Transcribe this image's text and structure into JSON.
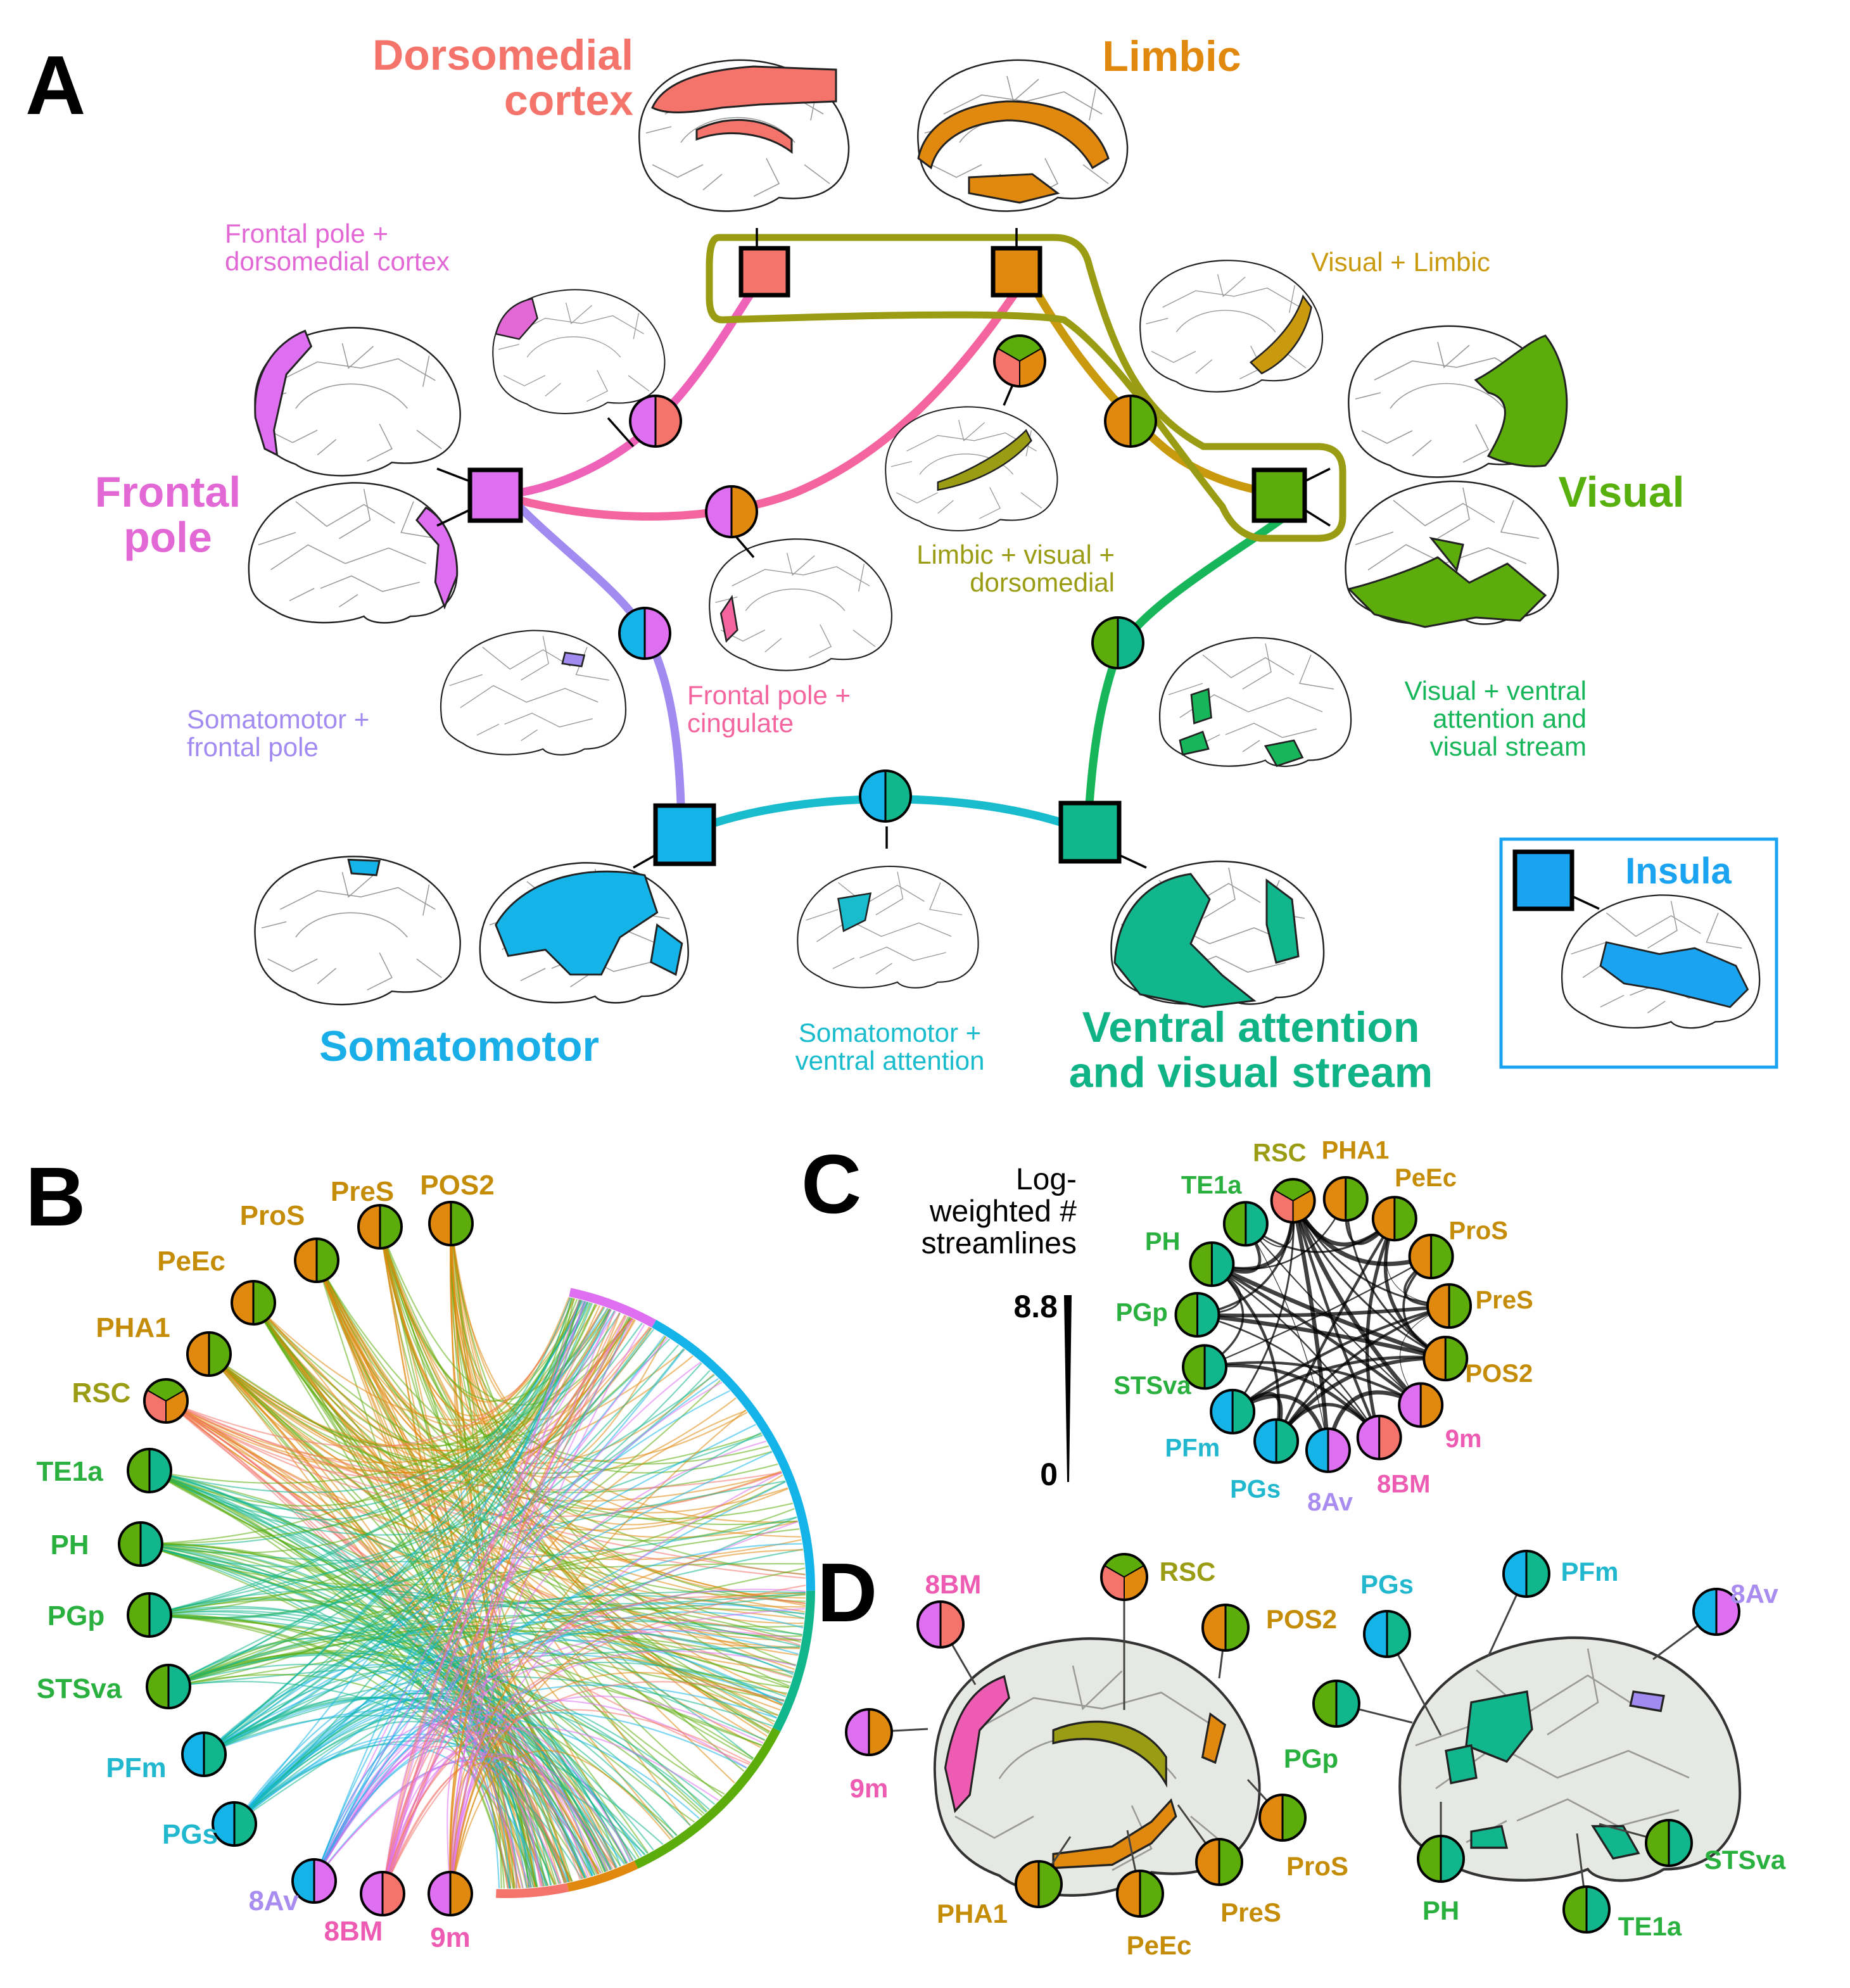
{
  "panels": {
    "a": "A",
    "b": "B",
    "c": "C",
    "d": "D"
  },
  "colors": {
    "dorsomedial": "#f4746b",
    "limbic": "#e0890e",
    "frontal_pole": "#dd6ff0",
    "visual": "#5cad0c",
    "somatomotor": "#14b4e8",
    "ventral": "#12b68c",
    "insula": "#1aa3f0",
    "edge_fp_dm": "#ee62b8",
    "edge_fp_limbic": "#f4659f",
    "edge_sm_fp": "#a28bf0",
    "edge_sm_va": "#19bccc",
    "edge_vis_va": "#18b65a",
    "edge_vis_limbic": "#c99a0e",
    "box_limbic_visual_dm": "#9a9c14",
    "label_frontal_pole": "#e268d6",
    "label_visual": "#58b00e",
    "label_somatomotor": "#1aaee8",
    "label_ventral": "#0fb386",
    "label_limbic_node": "#c58c08",
    "label_visual_node": "#2ab03e",
    "label_sm_node": "#21b8cf",
    "label_8av": "#a98cf0",
    "label_pink_node": "#ee5bb2"
  },
  "panel_a": {
    "networks": {
      "dorsomedial": "Dorsomedial\ncortex",
      "limbic": "Limbic",
      "frontal_pole": "Frontal\npole",
      "visual": "Visual",
      "somatomotor": "Somatomotor",
      "ventral": "Ventral attention\nand visual stream",
      "insula": "Insula"
    },
    "pairs": {
      "fp_dm": "Frontal pole +\ndorsomedial cortex",
      "vis_limbic": "Visual + Limbic",
      "limbic_vis_dm": "Limbic + visual +\ndorsomedial",
      "fp_cingulate": "Frontal pole +\ncingulate",
      "sm_fp": "Somatomotor +\nfrontal pole",
      "vis_va": "Visual + ventral\nattention and\nvisual stream",
      "sm_va": "Somatomotor +\nventral attention"
    }
  },
  "panel_b": {
    "nodes": [
      {
        "label": "POS2",
        "colors": [
          "limbic",
          "visual"
        ],
        "label_color": "label_limbic_node"
      },
      {
        "label": "PreS",
        "colors": [
          "limbic",
          "visual"
        ],
        "label_color": "label_limbic_node"
      },
      {
        "label": "ProS",
        "colors": [
          "limbic",
          "visual"
        ],
        "label_color": "label_limbic_node"
      },
      {
        "label": "PeEc",
        "colors": [
          "limbic",
          "visual"
        ],
        "label_color": "label_limbic_node"
      },
      {
        "label": "PHA1",
        "colors": [
          "limbic",
          "visual"
        ],
        "label_color": "label_limbic_node"
      },
      {
        "label": "RSC",
        "colors": [
          "dorsomedial",
          "visual",
          "limbic"
        ],
        "label_color": "box_limbic_visual_dm"
      },
      {
        "label": "TE1a",
        "colors": [
          "visual",
          "ventral"
        ],
        "label_color": "label_visual_node"
      },
      {
        "label": "PH",
        "colors": [
          "visual",
          "ventral"
        ],
        "label_color": "label_visual_node"
      },
      {
        "label": "PGp",
        "colors": [
          "visual",
          "ventral"
        ],
        "label_color": "label_visual_node"
      },
      {
        "label": "STSva",
        "colors": [
          "visual",
          "ventral"
        ],
        "label_color": "label_visual_node"
      },
      {
        "label": "PFm",
        "colors": [
          "somatomotor",
          "ventral"
        ],
        "label_color": "label_sm_node"
      },
      {
        "label": "PGs",
        "colors": [
          "somatomotor",
          "ventral"
        ],
        "label_color": "label_sm_node"
      },
      {
        "label": "8Av",
        "colors": [
          "somatomotor",
          "frontal_pole"
        ],
        "label_color": "label_8av"
      },
      {
        "label": "8BM",
        "colors": [
          "frontal_pole",
          "dorsomedial"
        ],
        "label_color": "label_pink_node"
      },
      {
        "label": "9m",
        "colors": [
          "frontal_pole",
          "limbic"
        ],
        "label_color": "label_pink_node"
      }
    ],
    "arc_segments": [
      {
        "color": "frontal_pole",
        "frac": 0.1
      },
      {
        "color": "somatomotor",
        "frac": 0.36
      },
      {
        "color": "ventral",
        "frac": 0.16
      },
      {
        "color": "visual",
        "frac": 0.22
      },
      {
        "color": "limbic",
        "frac": 0.08
      },
      {
        "color": "dorsomedial",
        "frac": 0.08
      }
    ]
  },
  "panel_c": {
    "legend_title": "Log-\nweighted #\nstreamlines",
    "legend_max": "8.8",
    "legend_min": "0",
    "nodes": [
      "PHA1",
      "PeEc",
      "ProS",
      "PreS",
      "POS2",
      "9m",
      "8BM",
      "8Av",
      "PGs",
      "PFm",
      "STSva",
      "PGp",
      "PH",
      "TE1a",
      "RSC"
    ]
  },
  "panel_d": {
    "medial_nodes": [
      "8BM",
      "9m",
      "RSC",
      "POS2",
      "ProS",
      "PreS",
      "PeEc",
      "PHA1"
    ],
    "lateral_nodes": [
      "PGs",
      "PFm",
      "8Av",
      "PGp",
      "PH",
      "TE1a",
      "STSva"
    ]
  }
}
